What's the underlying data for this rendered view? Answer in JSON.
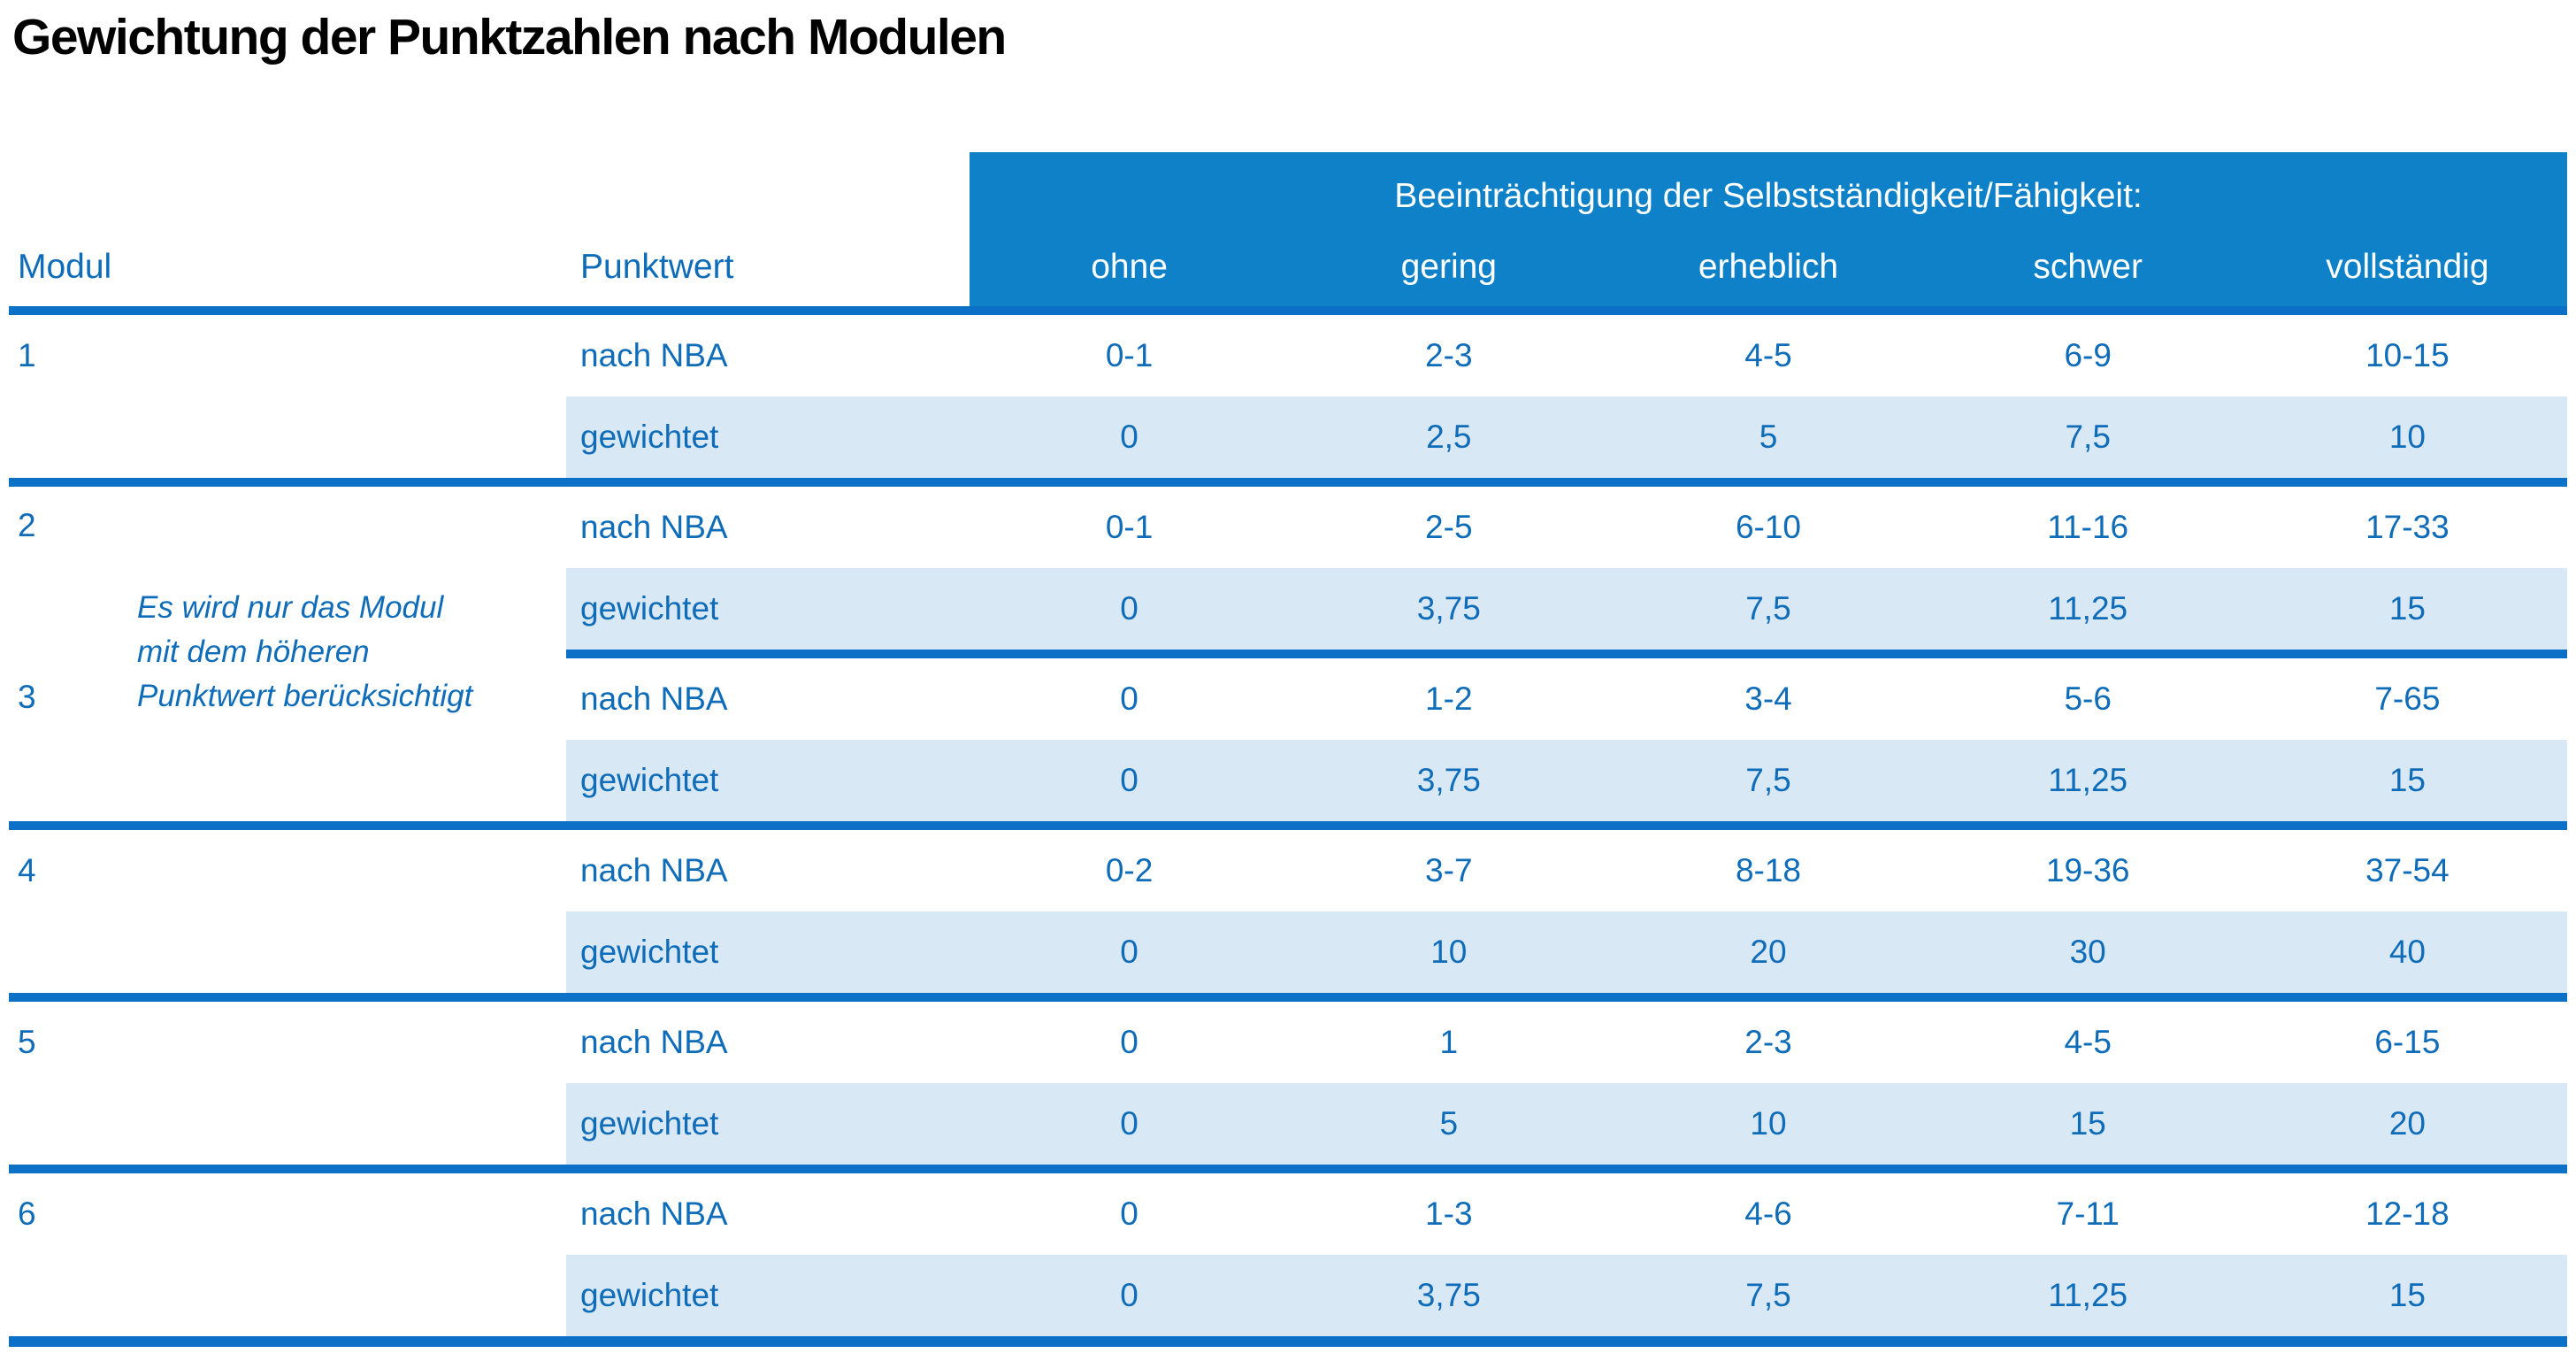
{
  "title": "Gewichtung der Punktzahlen nach Modulen",
  "colors": {
    "header_blue": "#0e81c9",
    "divider_blue": "#0c70c6",
    "shaded_row_blue": "#d9e8f5",
    "text_blue": "#0e6cb8",
    "title_black": "#000000",
    "header_text_white": "#ffffff"
  },
  "table": {
    "col_headers": {
      "modul": "Modul",
      "punktwert": "Punktwert"
    },
    "impairment_header": "Beeinträchtigung der Selbstständigkeit/Fähigkeit:",
    "severity_levels": [
      "ohne",
      "gering",
      "erheblich",
      "schwer",
      "vollständig"
    ],
    "row_labels": {
      "nba": "nach NBA",
      "weighted": "gewichtet"
    },
    "note_lines": [
      "Es wird nur das Modul",
      "mit dem höheren",
      "Punktwert berücksichtigt"
    ],
    "modules": [
      {
        "id": "1",
        "nba": [
          "0-1",
          "2-3",
          "4-5",
          "6-9",
          "10-15"
        ],
        "weighted": [
          "0",
          "2,5",
          "5",
          "7,5",
          "10"
        ]
      },
      {
        "id": "2",
        "nba": [
          "0-1",
          "2-5",
          "6-10",
          "11-16",
          "17-33"
        ],
        "weighted": [
          "0",
          "3,75",
          "7,5",
          "11,25",
          "15"
        ]
      },
      {
        "id": "3",
        "nba": [
          "0",
          "1-2",
          "3-4",
          "5-6",
          "7-65"
        ],
        "weighted": [
          "0",
          "3,75",
          "7,5",
          "11,25",
          "15"
        ]
      },
      {
        "id": "4",
        "nba": [
          "0-2",
          "3-7",
          "8-18",
          "19-36",
          "37-54"
        ],
        "weighted": [
          "0",
          "10",
          "20",
          "30",
          "40"
        ]
      },
      {
        "id": "5",
        "nba": [
          "0",
          "1",
          "2-3",
          "4-5",
          "6-15"
        ],
        "weighted": [
          "0",
          "5",
          "10",
          "15",
          "20"
        ]
      },
      {
        "id": "6",
        "nba": [
          "0",
          "1-3",
          "4-6",
          "7-11",
          "12-18"
        ],
        "weighted": [
          "0",
          "3,75",
          "7,5",
          "11,25",
          "15"
        ]
      }
    ]
  }
}
